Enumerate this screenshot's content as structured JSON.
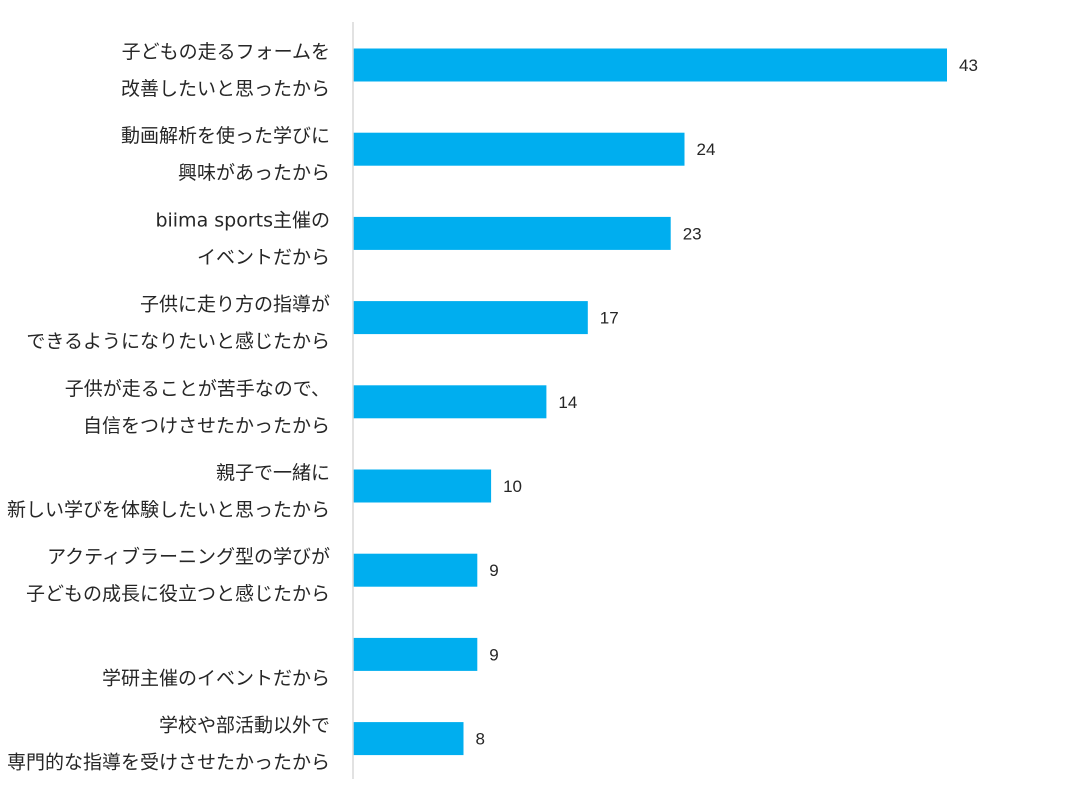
{
  "chart_data": {
    "type": "bar",
    "orientation": "horizontal",
    "categories": [
      [
        "子どもの走るフォームを",
        "改善したいと思ったから"
      ],
      [
        "動画解析を使った学びに",
        "興味があったから"
      ],
      [
        "biima sports主催の",
        "イベントだから"
      ],
      [
        "子供に走り方の指導が",
        "できるようになりたいと感じたから"
      ],
      [
        "子供が走ることが苦手なので、",
        "自信をつけさせたかったから"
      ],
      [
        "親子で一緒に",
        "新しい学びを体験したいと思ったから"
      ],
      [
        "アクティブラーニング型の学びが",
        "子どもの成長に役立つと感じたから"
      ],
      [
        "",
        "学研主催のイベントだから"
      ],
      [
        "学校や部活動以外で",
        "専門的な指導を受けさせたかったから"
      ]
    ],
    "values": [
      43,
      24,
      23,
      17,
      14,
      10,
      9,
      9,
      8
    ],
    "xlim": [
      0,
      43
    ],
    "grid": false,
    "legend": "none",
    "bar_color": "#00AEEF",
    "axis_color": "#D9D9D9"
  }
}
